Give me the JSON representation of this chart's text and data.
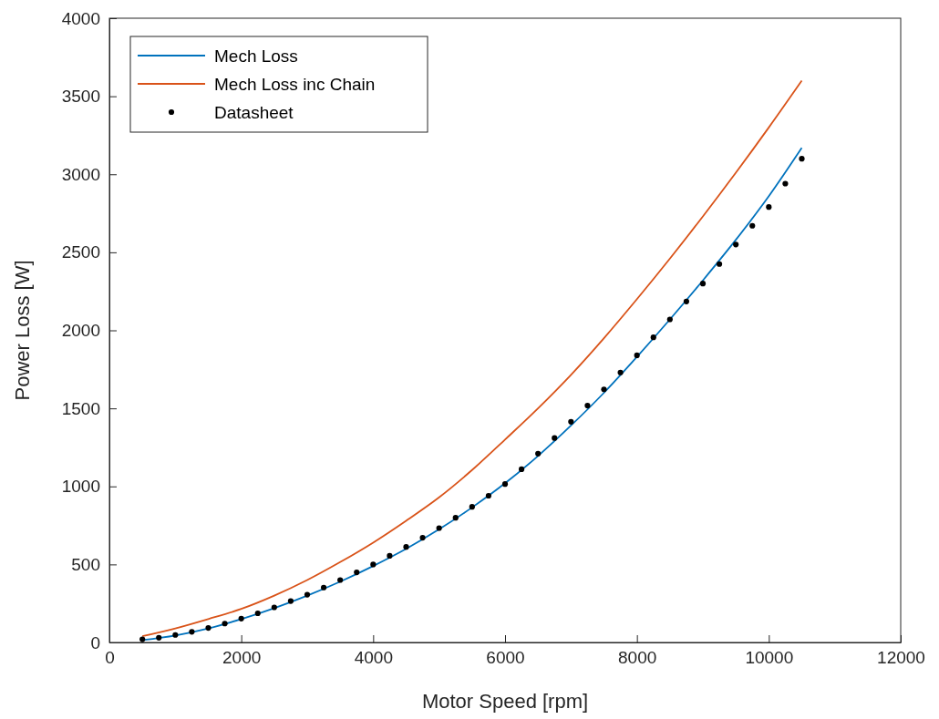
{
  "chart_data": {
    "type": "line",
    "xlabel": "Motor Speed [rpm]",
    "ylabel": "Power Loss [W]",
    "xlim": [
      0,
      12000
    ],
    "ylim": [
      0,
      4000
    ],
    "xticks": [
      0,
      2000,
      4000,
      6000,
      8000,
      10000,
      12000
    ],
    "yticks": [
      0,
      500,
      1000,
      1500,
      2000,
      2500,
      3000,
      3500,
      4000
    ],
    "grid": false,
    "legend": "top left",
    "series": [
      {
        "name": "Mech Loss",
        "color": "#0072bd",
        "x": [
          500,
          1000,
          1500,
          2000,
          2500,
          3000,
          3500,
          4000,
          4500,
          5000,
          5500,
          6000,
          6500,
          7000,
          7500,
          8000,
          8500,
          9000,
          9500,
          10000,
          10500
        ],
        "values": [
          15,
          45,
          90,
          150,
          220,
          300,
          390,
          490,
          600,
          725,
          865,
          1020,
          1195,
          1390,
          1600,
          1830,
          2070,
          2320,
          2580,
          2860,
          3170
        ]
      },
      {
        "name": "Mech Loss inc Chain",
        "color": "#d95319",
        "x": [
          500,
          1000,
          1500,
          2000,
          2500,
          3000,
          3500,
          4000,
          4500,
          5000,
          5500,
          6000,
          6500,
          7000,
          7500,
          8000,
          8500,
          9000,
          9500,
          10000,
          10500
        ],
        "values": [
          40,
          90,
          150,
          215,
          300,
          400,
          515,
          640,
          780,
          930,
          1105,
          1300,
          1500,
          1715,
          1950,
          2200,
          2460,
          2730,
          3010,
          3300,
          3600
        ]
      },
      {
        "name": "Datasheet",
        "color": "#000000",
        "type": "scatter",
        "marker": "circle",
        "x": [
          500,
          750,
          1000,
          1250,
          1500,
          1750,
          2000,
          2250,
          2500,
          2750,
          3000,
          3250,
          3500,
          3750,
          4000,
          4250,
          4500,
          4750,
          5000,
          5250,
          5500,
          5750,
          6000,
          6250,
          6500,
          6750,
          7000,
          7250,
          7500,
          7750,
          8000,
          8250,
          8500,
          8750,
          9000,
          9250,
          9500,
          9750,
          10000,
          10250,
          10500
        ],
        "values": [
          20,
          30,
          48,
          68,
          93,
          121,
          153,
          187,
          225,
          265,
          306,
          352,
          400,
          449,
          500,
          555,
          612,
          671,
          733,
          799,
          869,
          940,
          1015,
          1110,
          1210,
          1310,
          1414,
          1518,
          1622,
          1730,
          1840,
          1955,
          2070,
          2185,
          2300,
          2425,
          2550,
          2670,
          2790,
          2940,
          3100
        ]
      }
    ]
  }
}
